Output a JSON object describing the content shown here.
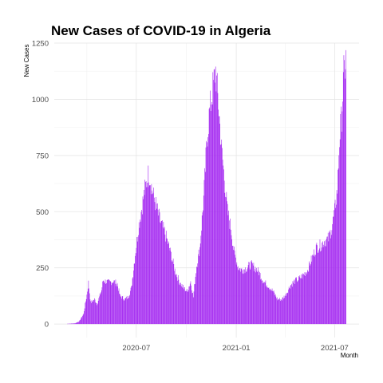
{
  "chart_data": {
    "type": "bar",
    "title": "New Cases of COVID-19 in Algeria",
    "xlabel": "Month",
    "ylabel": "New Cases",
    "x_start": "2020-02-25",
    "x_end": "2021-07-22",
    "xlim": [
      "2020-02-01",
      "2021-08-15"
    ],
    "ylim": [
      -60,
      1250
    ],
    "y_ticks": [
      0,
      250,
      500,
      750,
      1000,
      1250
    ],
    "x_ticks": [
      {
        "date": "2020-07-01",
        "label": "2020-07"
      },
      {
        "date": "2021-01-01",
        "label": "2021-01"
      },
      {
        "date": "2021-07-01",
        "label": "2021-07"
      }
    ],
    "x_minor_ticks": [
      "2020-04-01",
      "2020-10-01",
      "2021-04-01"
    ],
    "grid": true,
    "bar_color": "#a020f0",
    "keypoints": [
      [
        "2020-02-25",
        1
      ],
      [
        "2020-03-10",
        3
      ],
      [
        "2020-03-18",
        12
      ],
      [
        "2020-03-26",
        45
      ],
      [
        "2020-04-01",
        130
      ],
      [
        "2020-04-04",
        185
      ],
      [
        "2020-04-08",
        95
      ],
      [
        "2020-04-15",
        110
      ],
      [
        "2020-04-20",
        90
      ],
      [
        "2020-04-28",
        150
      ],
      [
        "2020-05-01",
        195
      ],
      [
        "2020-05-10",
        185
      ],
      [
        "2020-05-20",
        190
      ],
      [
        "2020-05-27",
        180
      ],
      [
        "2020-06-01",
        125
      ],
      [
        "2020-06-10",
        110
      ],
      [
        "2020-06-16",
        120
      ],
      [
        "2020-06-22",
        160
      ],
      [
        "2020-06-28",
        290
      ],
      [
        "2020-07-05",
        430
      ],
      [
        "2020-07-10",
        500
      ],
      [
        "2020-07-16",
        590
      ],
      [
        "2020-07-24",
        675
      ],
      [
        "2020-07-30",
        600
      ],
      [
        "2020-08-05",
        540
      ],
      [
        "2020-08-15",
        450
      ],
      [
        "2020-08-22",
        410
      ],
      [
        "2020-09-01",
        330
      ],
      [
        "2020-09-10",
        240
      ],
      [
        "2020-09-18",
        190
      ],
      [
        "2020-09-26",
        160
      ],
      [
        "2020-10-03",
        145
      ],
      [
        "2020-10-09",
        190
      ],
      [
        "2020-10-14",
        120
      ],
      [
        "2020-10-20",
        260
      ],
      [
        "2020-10-26",
        340
      ],
      [
        "2020-11-02",
        560
      ],
      [
        "2020-11-08",
        820
      ],
      [
        "2020-11-13",
        950
      ],
      [
        "2020-11-19",
        1050
      ],
      [
        "2020-11-24",
        1130
      ],
      [
        "2020-11-30",
        950
      ],
      [
        "2020-12-05",
        780
      ],
      [
        "2020-12-10",
        650
      ],
      [
        "2020-12-16",
        500
      ],
      [
        "2020-12-22",
        430
      ],
      [
        "2020-12-28",
        320
      ],
      [
        "2021-01-05",
        250
      ],
      [
        "2021-01-12",
        240
      ],
      [
        "2021-01-20",
        250
      ],
      [
        "2021-01-28",
        265
      ],
      [
        "2021-02-05",
        250
      ],
      [
        "2021-02-12",
        230
      ],
      [
        "2021-02-20",
        190
      ],
      [
        "2021-03-01",
        170
      ],
      [
        "2021-03-10",
        145
      ],
      [
        "2021-03-18",
        110
      ],
      [
        "2021-03-26",
        110
      ],
      [
        "2021-04-02",
        130
      ],
      [
        "2021-04-10",
        170
      ],
      [
        "2021-04-18",
        190
      ],
      [
        "2021-04-26",
        200
      ],
      [
        "2021-05-05",
        220
      ],
      [
        "2021-05-12",
        240
      ],
      [
        "2021-05-20",
        290
      ],
      [
        "2021-05-28",
        340
      ],
      [
        "2021-06-05",
        350
      ],
      [
        "2021-06-12",
        370
      ],
      [
        "2021-06-20",
        380
      ],
      [
        "2021-06-26",
        430
      ],
      [
        "2021-07-01",
        500
      ],
      [
        "2021-07-06",
        600
      ],
      [
        "2021-07-10",
        820
      ],
      [
        "2021-07-14",
        930
      ],
      [
        "2021-07-18",
        1110
      ],
      [
        "2021-07-22",
        1180
      ]
    ]
  }
}
